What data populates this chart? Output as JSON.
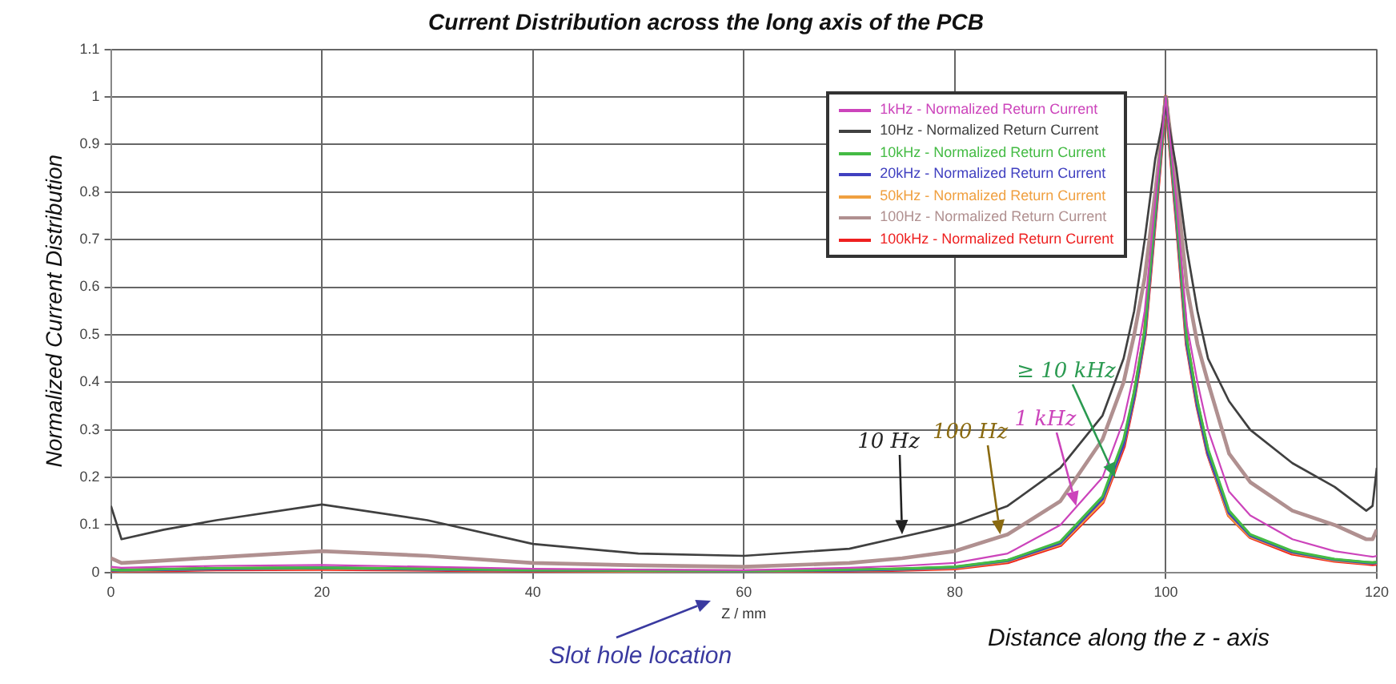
{
  "chart_data": {
    "type": "line",
    "title": "Current Distribution across the long axis of the PCB",
    "xlabel": "Z / mm",
    "ylabel": "Normalized Current Distribution",
    "xlim": [
      0,
      120
    ],
    "xticks": [
      0,
      20,
      40,
      60,
      80,
      100,
      120
    ],
    "ylim": [
      0,
      1.1
    ],
    "yticks": [
      0,
      0.1,
      0.2,
      0.3,
      0.4,
      0.5,
      0.6,
      0.7,
      0.8,
      0.9,
      1,
      1.1
    ],
    "grid": true,
    "legend": "top",
    "line_style": "solid",
    "marker": "none",
    "x": [
      0,
      1,
      5,
      10,
      20,
      30,
      40,
      50,
      60,
      70,
      75,
      80,
      85,
      90,
      94,
      96,
      97,
      98,
      99,
      100,
      101,
      102,
      103,
      104,
      106,
      108,
      112,
      116,
      119,
      119.6,
      120
    ],
    "series": [
      {
        "name": "1kHz - Normalized Return Current",
        "color": "#cc44bb",
        "values": [
          0.012,
          0.01,
          0.012,
          0.014,
          0.016,
          0.012,
          0.008,
          0.006,
          0.005,
          0.01,
          0.014,
          0.02,
          0.04,
          0.1,
          0.2,
          0.32,
          0.42,
          0.55,
          0.78,
          1.0,
          0.78,
          0.52,
          0.4,
          0.3,
          0.17,
          0.12,
          0.07,
          0.045,
          0.035,
          0.033,
          0.035
        ]
      },
      {
        "name": "10Hz - Normalized Return Current",
        "color": "#404040",
        "values": [
          0.14,
          0.07,
          0.09,
          0.11,
          0.143,
          0.11,
          0.06,
          0.04,
          0.035,
          0.05,
          0.075,
          0.1,
          0.14,
          0.22,
          0.33,
          0.45,
          0.55,
          0.7,
          0.87,
          0.98,
          0.85,
          0.68,
          0.55,
          0.45,
          0.36,
          0.3,
          0.23,
          0.18,
          0.13,
          0.14,
          0.22
        ]
      },
      {
        "name": "10kHz - Normalized Return Current",
        "color": "#44bb44",
        "values": [
          0.006,
          0.005,
          0.007,
          0.009,
          0.01,
          0.008,
          0.005,
          0.004,
          0.003,
          0.006,
          0.008,
          0.012,
          0.026,
          0.065,
          0.16,
          0.28,
          0.38,
          0.51,
          0.76,
          1.0,
          0.76,
          0.49,
          0.36,
          0.26,
          0.13,
          0.08,
          0.045,
          0.028,
          0.022,
          0.021,
          0.022
        ]
      },
      {
        "name": "20kHz - Normalized Return Current",
        "color": "#4040c0",
        "values": [
          0.005,
          0.005,
          0.006,
          0.008,
          0.01,
          0.007,
          0.005,
          0.004,
          0.003,
          0.005,
          0.007,
          0.011,
          0.025,
          0.062,
          0.155,
          0.27,
          0.37,
          0.5,
          0.75,
          1.0,
          0.75,
          0.48,
          0.35,
          0.25,
          0.125,
          0.078,
          0.043,
          0.027,
          0.021,
          0.02,
          0.021
        ]
      },
      {
        "name": "50kHz - Normalized Return Current",
        "color": "#f0a040",
        "values": [
          0.005,
          0.004,
          0.006,
          0.008,
          0.009,
          0.007,
          0.005,
          0.003,
          0.003,
          0.005,
          0.007,
          0.01,
          0.024,
          0.06,
          0.15,
          0.27,
          0.37,
          0.5,
          0.75,
          1.0,
          0.75,
          0.48,
          0.35,
          0.25,
          0.12,
          0.076,
          0.042,
          0.026,
          0.02,
          0.02,
          0.02
        ]
      },
      {
        "name": "100Hz - Normalized Return Current",
        "color": "#b09090",
        "values": [
          0.03,
          0.02,
          0.025,
          0.032,
          0.045,
          0.035,
          0.02,
          0.015,
          0.012,
          0.02,
          0.03,
          0.045,
          0.08,
          0.15,
          0.28,
          0.4,
          0.5,
          0.62,
          0.8,
          1.0,
          0.82,
          0.6,
          0.48,
          0.4,
          0.25,
          0.19,
          0.13,
          0.1,
          0.07,
          0.07,
          0.09
        ]
      },
      {
        "name": "100kHz - Normalized Return Current",
        "color": "#ee2020",
        "values": [
          0.004,
          0.004,
          0.005,
          0.007,
          0.008,
          0.006,
          0.004,
          0.003,
          0.002,
          0.004,
          0.006,
          0.009,
          0.022,
          0.058,
          0.148,
          0.265,
          0.37,
          0.5,
          0.75,
          1.0,
          0.75,
          0.48,
          0.35,
          0.25,
          0.12,
          0.075,
          0.04,
          0.025,
          0.019,
          0.018,
          0.019
        ]
      }
    ],
    "annotations": [
      {
        "text": "10 Hz",
        "x": 75,
        "y": 0.08
      },
      {
        "text": "100 Hz",
        "x": 84.3,
        "y": 0.08
      },
      {
        "text": "1 kHz",
        "x": 91.5,
        "y": 0.14
      },
      {
        "text": "≥ 10 kHz",
        "x": 95.2,
        "y": 0.2
      },
      "Slot hole location",
      "Distance along the z - axis"
    ]
  }
}
